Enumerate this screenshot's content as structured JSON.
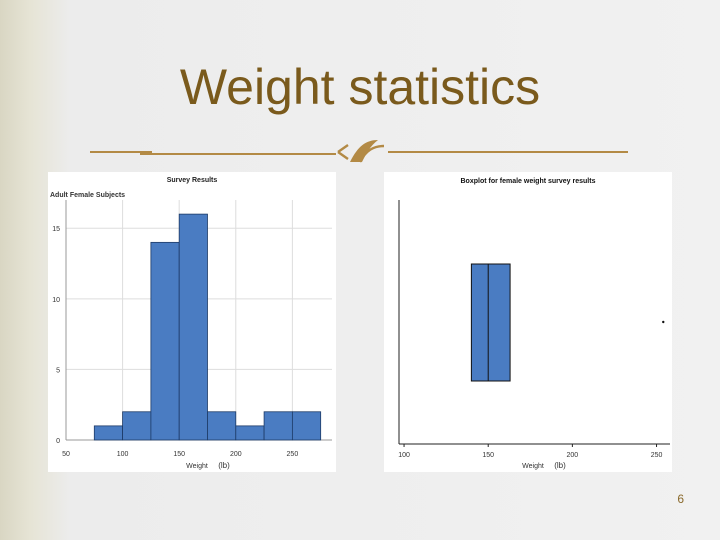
{
  "slide": {
    "title": "Weight statistics",
    "number": "6",
    "accent_color": "#b38a45",
    "ornament_icon": "ribbon-divider-icon"
  },
  "chart_data": [
    {
      "type": "bar",
      "title": "Survey Results",
      "ylabel": "Adult Female Subjects",
      "xlabel": "Weight",
      "xlabel_unit": "(lb)",
      "bin_edges": [
        75,
        100,
        125,
        150,
        175,
        200,
        225,
        250,
        275
      ],
      "values": [
        1,
        2,
        14,
        16,
        2,
        1,
        2,
        2
      ],
      "xlim": [
        50,
        285
      ],
      "ylim": [
        0,
        17
      ],
      "xticks": [
        50,
        100,
        150,
        200,
        250
      ],
      "yticks": [
        0,
        5,
        10,
        15
      ],
      "grid": true,
      "bar_color": "#4a7cc2"
    },
    {
      "type": "box",
      "title": "Boxplot for female weight survey results",
      "xlabel": "Weight",
      "xlabel_unit": "(lb)",
      "xlim": [
        97,
        258
      ],
      "xticks": [
        100,
        150,
        200,
        250
      ],
      "q1": 140,
      "median": 150,
      "q3": 163,
      "outliers": [
        254
      ],
      "box_color": "#4a7cc2"
    }
  ]
}
